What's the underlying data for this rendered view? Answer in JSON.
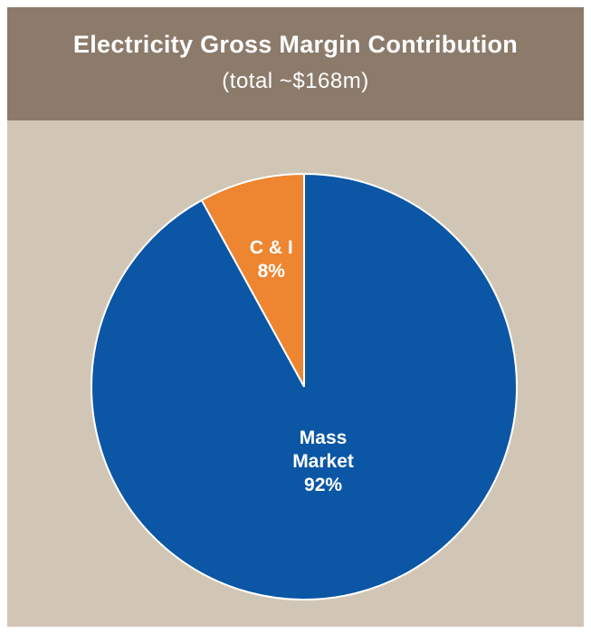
{
  "chart_data": {
    "type": "pie",
    "title": "Electricity Gross Margin Contribution",
    "subtitle": "(total ~$168m)",
    "slices": [
      {
        "name": "C & I",
        "value": 8,
        "value_label": "8%",
        "label_lines": [
          "C & I",
          "8%"
        ],
        "color": "#ed8531"
      },
      {
        "name": "Mass Market",
        "value": 92,
        "value_label": "92%",
        "label_lines": [
          "Mass",
          "Market",
          "92%"
        ],
        "color": "#0b56a5"
      }
    ],
    "legend": "none"
  },
  "colors": {
    "header_background": "#8c7b6b",
    "plot_background": "#d1c6b6"
  }
}
